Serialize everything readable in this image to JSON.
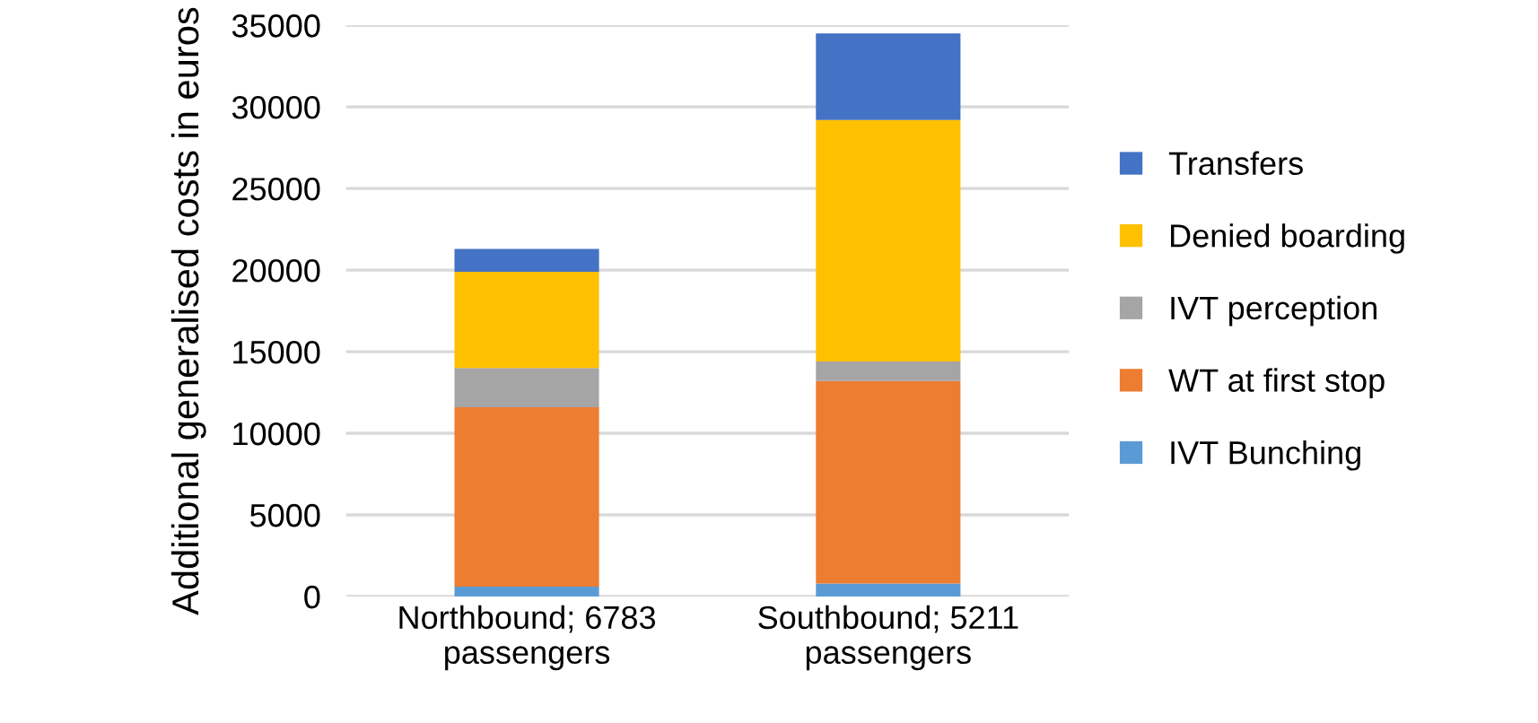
{
  "chart_data": {
    "type": "bar",
    "stacked": true,
    "ylabel": "Additional generalised costs in euros",
    "categories": [
      "Northbound; 6783 passengers",
      "Southbound; 5211 passengers"
    ],
    "series": [
      {
        "name": "IVT Bunching",
        "color": "#5b9bd5",
        "values": [
          600,
          800
        ]
      },
      {
        "name": "WT at first stop",
        "color": "#ed7d31",
        "values": [
          11000,
          12400
        ]
      },
      {
        "name": "IVT perception",
        "color": "#a5a5a5",
        "values": [
          2400,
          1200
        ]
      },
      {
        "name": "Denied boarding",
        "color": "#ffc000",
        "values": [
          5900,
          14800
        ]
      },
      {
        "name": "Transfers",
        "color": "#4472c4",
        "values": [
          1400,
          5300
        ]
      }
    ],
    "ylim": [
      0,
      35000
    ],
    "yticks": [
      0,
      5000,
      10000,
      15000,
      20000,
      25000,
      30000,
      35000
    ],
    "grid": "y",
    "legend": "right"
  }
}
